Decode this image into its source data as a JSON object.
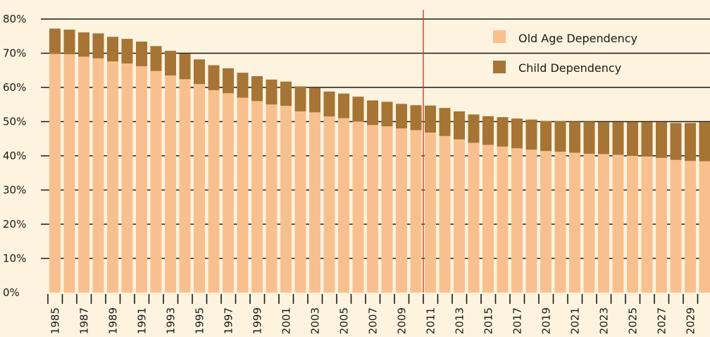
{
  "chart_data": {
    "type": "bar",
    "stacked": true,
    "x": [
      1985,
      1986,
      1987,
      1988,
      1989,
      1990,
      1991,
      1992,
      1993,
      1994,
      1995,
      1996,
      1997,
      1998,
      1999,
      2000,
      2001,
      2002,
      2003,
      2004,
      2005,
      2006,
      2007,
      2008,
      2009,
      2010,
      2011,
      2012,
      2013,
      2014,
      2015,
      2016,
      2017,
      2018,
      2019,
      2020,
      2021,
      2022,
      2023,
      2024,
      2025,
      2026,
      2027,
      2028,
      2029,
      2030
    ],
    "x_tick_labels": [
      "1985",
      "1987",
      "1989",
      "1991",
      "1993",
      "1995",
      "1997",
      "1999",
      "2001",
      "2003",
      "2005",
      "2007",
      "2009",
      "2011",
      "2013",
      "2015",
      "2017",
      "2019",
      "2021",
      "2023",
      "2025",
      "2027",
      "2029"
    ],
    "series": [
      {
        "name": "Old Age Dependency",
        "color": "#f9c08f",
        "values": [
          69.8,
          69.7,
          69.0,
          68.5,
          67.6,
          67.0,
          66.2,
          64.8,
          63.5,
          62.4,
          61.0,
          59.2,
          58.3,
          57.0,
          56.0,
          55.0,
          54.6,
          53.0,
          52.7,
          51.5,
          51.0,
          50.0,
          49.0,
          48.6,
          48.0,
          47.5,
          46.8,
          45.8,
          44.8,
          43.8,
          43.2,
          42.7,
          42.2,
          41.8,
          41.4,
          41.2,
          40.9,
          40.6,
          40.5,
          40.3,
          40.0,
          39.8,
          39.4,
          38.8,
          38.5,
          38.4
        ]
      },
      {
        "name": "Child Dependency",
        "color": "#a67435",
        "values": [
          7.4,
          7.2,
          7.1,
          7.3,
          7.2,
          7.2,
          7.2,
          7.3,
          7.2,
          7.5,
          7.2,
          7.3,
          7.3,
          7.3,
          7.3,
          7.3,
          7.1,
          7.3,
          7.2,
          7.3,
          7.2,
          7.3,
          7.2,
          7.2,
          7.2,
          7.3,
          7.9,
          8.2,
          8.2,
          8.3,
          8.4,
          8.6,
          8.7,
          8.8,
          8.8,
          8.9,
          9.1,
          9.4,
          9.4,
          9.6,
          9.9,
          10.1,
          10.4,
          10.8,
          11.1,
          11.4
        ]
      }
    ],
    "y_tick_labels": [
      "0%",
      "10%",
      "20%",
      "30%",
      "40%",
      "50%",
      "60%",
      "70%",
      "80%"
    ],
    "ylim": [
      0,
      80
    ],
    "reference_line": {
      "x": 2011,
      "color": "#d23a2a"
    },
    "grid": "horizontal",
    "legend_position": "top-right",
    "title": "",
    "xlabel": "",
    "ylabel": ""
  }
}
